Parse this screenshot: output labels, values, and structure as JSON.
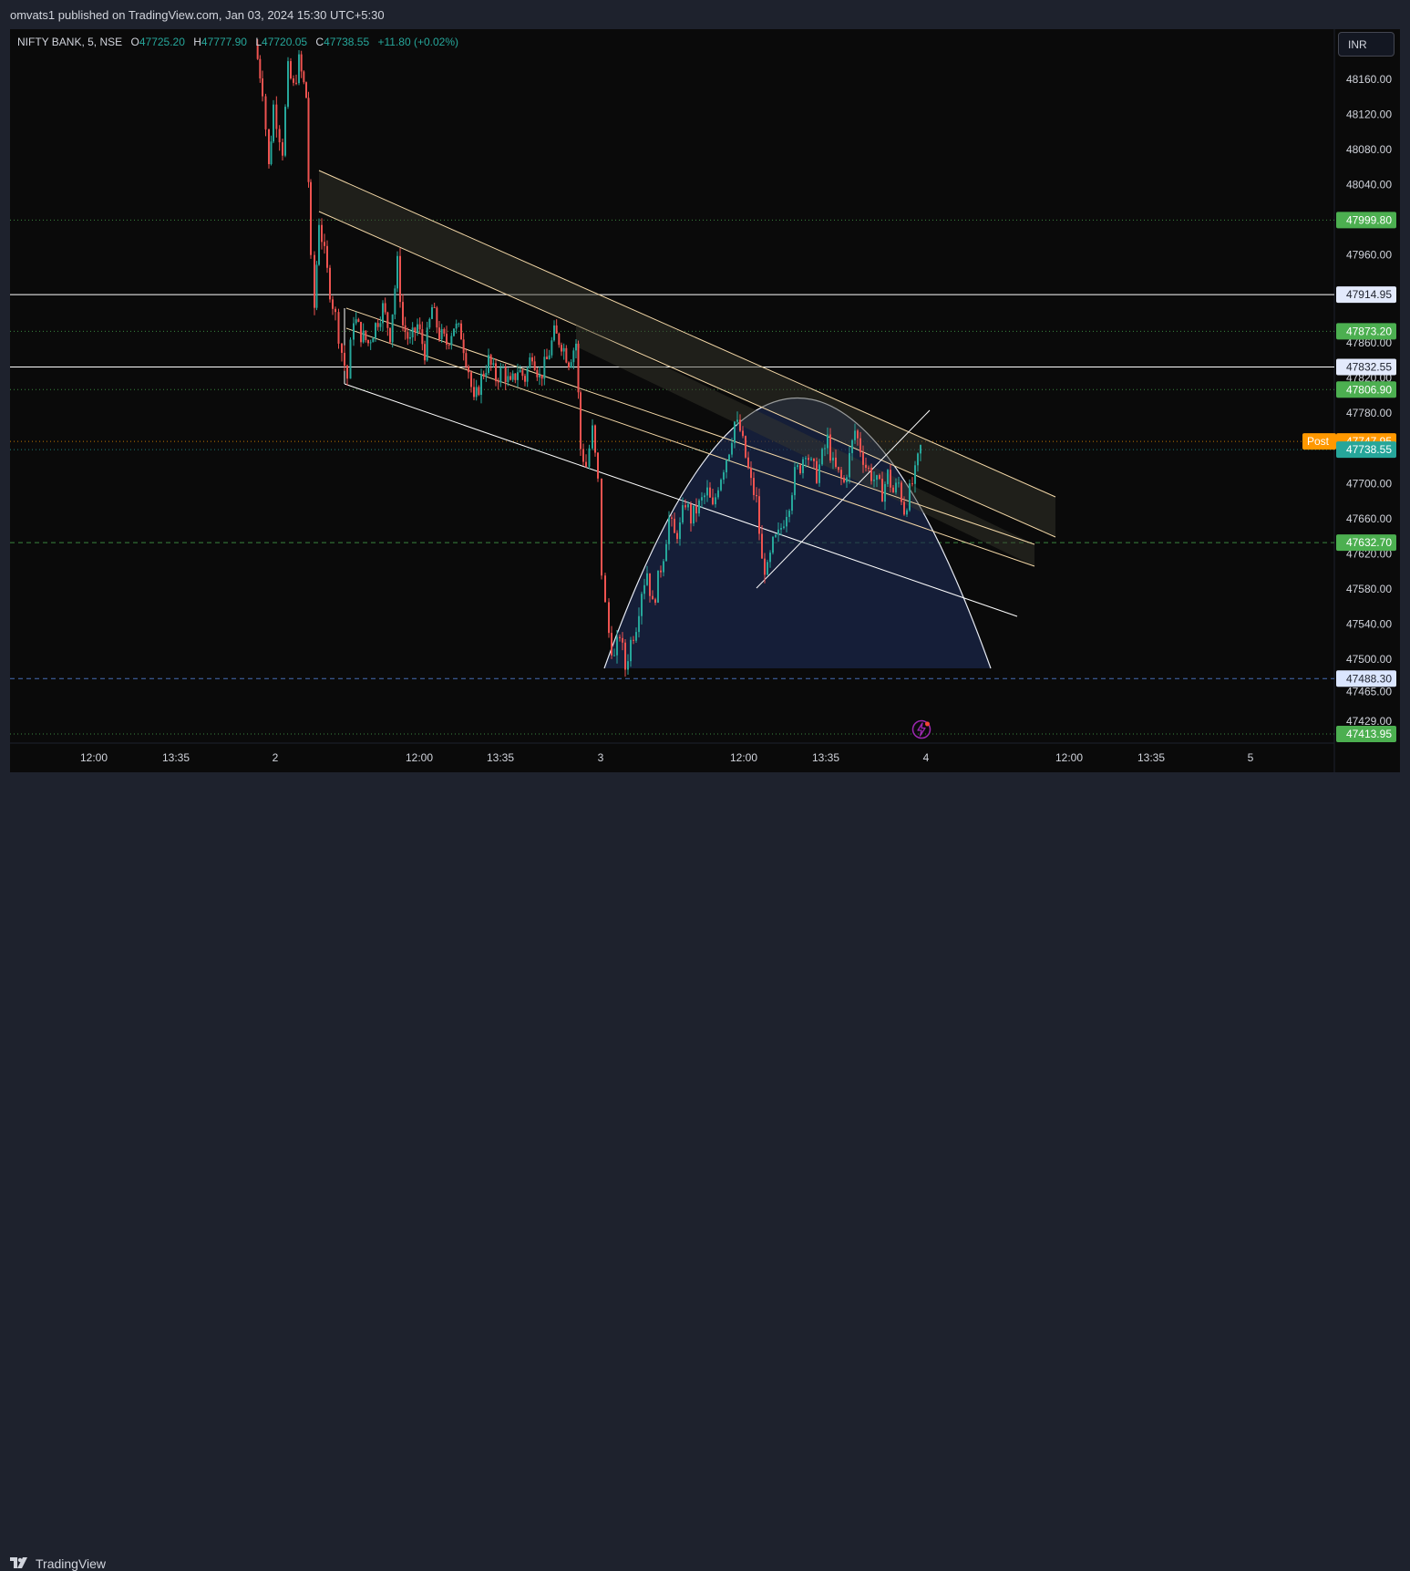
{
  "header": {
    "publisher": "omvats1 published on TradingView.com, Jan 03, 2024 15:30 UTC+5:30"
  },
  "legend": {
    "symbol": "NIFTY BANK, 5, NSE",
    "open_label": "O",
    "open": "47725.20",
    "high_label": "H",
    "high": "47777.90",
    "low_label": "L",
    "low": "47720.05",
    "close_label": "C",
    "close": "47738.55",
    "change": "+11.80 (+0.02%)"
  },
  "currency_button": "INR",
  "footer": {
    "brand": "TradingView",
    "logo_icon": "tradingview-logo-icon"
  },
  "alert_icon": "lightning-bolt-icon",
  "colors": {
    "background": "#0a0a0a",
    "panel": "#1e222d",
    "up": "#26a69a",
    "down": "#ef5350",
    "channel": "#f5d9a8",
    "arc_fill": "#1b2a52",
    "level_green": "#4caf50",
    "level_blue": "#5b8def",
    "post_orange": "#ff9800"
  },
  "chart_data": {
    "type": "candlestick",
    "symbol": "NIFTY BANK",
    "interval": "5",
    "exchange": "NSE",
    "ylim": [
      47400,
      48200
    ],
    "y_ticks": [
      "48160.00",
      "48120.00",
      "48080.00",
      "48040.00",
      "47960.00",
      "47860.00",
      "47820.00",
      "47780.00",
      "47700.00",
      "47660.00",
      "47620.00",
      "47580.00",
      "47540.00",
      "47500.00",
      "47465.00",
      "47429.00"
    ],
    "x_ticks": [
      "12:00",
      "13:35",
      "2",
      "12:00",
      "13:35",
      "3",
      "12:00",
      "13:35",
      "4",
      "12:00",
      "13:35",
      "5"
    ],
    "levels": [
      {
        "label": "47999.80",
        "value": 47999.8,
        "style": "dotted",
        "color": "#4caf50"
      },
      {
        "label": "47914.95",
        "value": 47914.95,
        "style": "solid",
        "color": "#ffffff"
      },
      {
        "label": "47873.20",
        "value": 47873.2,
        "style": "dotted",
        "color": "#4caf50"
      },
      {
        "label": "47832.55",
        "value": 47832.55,
        "style": "solid",
        "color": "#ffffff"
      },
      {
        "label": "47806.90",
        "value": 47806.9,
        "style": "dotted",
        "color": "#4caf50"
      },
      {
        "label": "47747.95",
        "value": 47747.95,
        "style": "dotted",
        "color": "#ff9800",
        "tag": "Post"
      },
      {
        "label": "47738.55",
        "value": 47738.55,
        "style": "dotted",
        "color": "#26a69a"
      },
      {
        "label": "47632.70",
        "value": 47632.7,
        "style": "dashed",
        "color": "#4caf50"
      },
      {
        "label": "47488.30",
        "value": 47488.3,
        "style": "dashed",
        "color": "#5b8def"
      },
      {
        "label": "47413.95",
        "value": 47413.95,
        "style": "dotted",
        "color": "#4caf50"
      }
    ],
    "price_path": [
      [
        280,
        48200
      ],
      [
        288,
        48150
      ],
      [
        295,
        48060
      ],
      [
        300,
        48130
      ],
      [
        310,
        48080
      ],
      [
        316,
        48170
      ],
      [
        322,
        48150
      ],
      [
        328,
        48180
      ],
      [
        336,
        48140
      ],
      [
        341,
        47950
      ],
      [
        345,
        47900
      ],
      [
        350,
        48000
      ],
      [
        356,
        47960
      ],
      [
        362,
        47920
      ],
      [
        368,
        47890
      ],
      [
        375,
        47850
      ],
      [
        381,
        47820
      ],
      [
        388,
        47890
      ],
      [
        396,
        47870
      ],
      [
        404,
        47860
      ],
      [
        412,
        47880
      ],
      [
        420,
        47900
      ],
      [
        428,
        47870
      ],
      [
        436,
        47950
      ],
      [
        442,
        47880
      ],
      [
        450,
        47860
      ],
      [
        458,
        47880
      ],
      [
        466,
        47850
      ],
      [
        474,
        47900
      ],
      [
        482,
        47870
      ],
      [
        490,
        47860
      ],
      [
        498,
        47880
      ],
      [
        506,
        47870
      ],
      [
        514,
        47830
      ],
      [
        520,
        47790
      ],
      [
        528,
        47820
      ],
      [
        536,
        47840
      ],
      [
        544,
        47820
      ],
      [
        552,
        47830
      ],
      [
        560,
        47810
      ],
      [
        568,
        47830
      ],
      [
        576,
        47820
      ],
      [
        584,
        47850
      ],
      [
        592,
        47820
      ],
      [
        600,
        47840
      ],
      [
        608,
        47870
      ],
      [
        616,
        47860
      ],
      [
        624,
        47840
      ],
      [
        632,
        47860
      ],
      [
        637,
        47740
      ],
      [
        643,
        47720
      ],
      [
        650,
        47760
      ],
      [
        656,
        47700
      ],
      [
        660,
        47600
      ],
      [
        664,
        47560
      ],
      [
        668,
        47530
      ],
      [
        674,
        47500
      ],
      [
        680,
        47530
      ],
      [
        686,
        47490
      ],
      [
        692,
        47520
      ],
      [
        698,
        47540
      ],
      [
        704,
        47580
      ],
      [
        710,
        47600
      ],
      [
        716,
        47560
      ],
      [
        722,
        47590
      ],
      [
        728,
        47620
      ],
      [
        734,
        47660
      ],
      [
        740,
        47640
      ],
      [
        746,
        47650
      ],
      [
        752,
        47680
      ],
      [
        758,
        47660
      ],
      [
        764,
        47670
      ],
      [
        770,
        47680
      ],
      [
        776,
        47690
      ],
      [
        782,
        47670
      ],
      [
        788,
        47700
      ],
      [
        794,
        47720
      ],
      [
        800,
        47740
      ],
      [
        806,
        47770
      ],
      [
        812,
        47760
      ],
      [
        818,
        47730
      ],
      [
        824,
        47700
      ],
      [
        830,
        47680
      ],
      [
        836,
        47610
      ],
      [
        842,
        47600
      ],
      [
        848,
        47630
      ],
      [
        854,
        47640
      ],
      [
        860,
        47660
      ],
      [
        866,
        47680
      ],
      [
        872,
        47710
      ],
      [
        878,
        47720
      ],
      [
        884,
        47740
      ],
      [
        890,
        47720
      ],
      [
        896,
        47710
      ],
      [
        902,
        47730
      ],
      [
        908,
        47750
      ],
      [
        914,
        47720
      ],
      [
        920,
        47710
      ],
      [
        926,
        47700
      ],
      [
        932,
        47730
      ],
      [
        938,
        47760
      ],
      [
        944,
        47740
      ],
      [
        950,
        47720
      ],
      [
        956,
        47710
      ],
      [
        962,
        47700
      ],
      [
        968,
        47690
      ],
      [
        974,
        47710
      ],
      [
        980,
        47690
      ],
      [
        986,
        47700
      ],
      [
        992,
        47670
      ],
      [
        998,
        47690
      ],
      [
        1004,
        47710
      ],
      [
        1010,
        47740
      ]
    ],
    "drawings": {
      "upper_channel": "descending parallel channel (tan)",
      "lower_channel": "descending parallel channel (white)",
      "arc": "rounded arc pattern",
      "trendline": "rising white trendline"
    }
  }
}
